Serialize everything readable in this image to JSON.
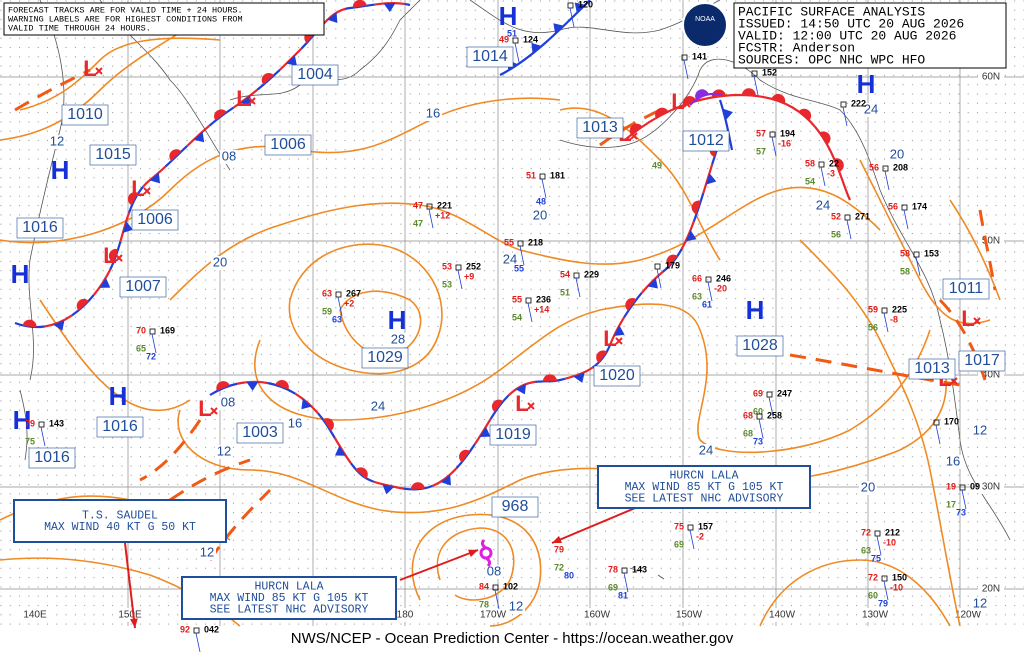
{
  "header": {
    "notes": [
      "FORECAST TRACKS ARE FOR VALID TIME + 24 HOURS.",
      "WARNING LABELS ARE FOR HIGHEST CONDITIONS FROM",
      "VALID TIME THROUGH 24 HOURS."
    ],
    "title": "PACIFIC SURFACE ANALYSIS",
    "issued": "ISSUED: 14:50 UTC 20 AUG 2026",
    "valid": "VALID:  12:00 UTC 20 AUG 2026",
    "forecaster": "FCSTR:  Anderson",
    "sources": "SOURCES: OPC NHC WPC HFO",
    "logo": "NOAA"
  },
  "footer": "NWS/NCEP - Ocean Prediction Center - https://ocean.weather.gov",
  "warnings": [
    {
      "lines": [
        "T.S. SAUDEL",
        "MAX WIND 40 KT G 50 KT"
      ]
    },
    {
      "lines": [
        "HURCN LALA",
        "MAX WIND 85 KT G 105 KT",
        "SEE LATEST NHC ADVISORY"
      ]
    },
    {
      "lines": [
        "HURCN LALA",
        "MAX WIND 85 KT G 105 KT",
        "SEE LATEST NHC ADVISORY"
      ]
    }
  ],
  "highs": [
    "H",
    "H",
    "H",
    "H",
    "H",
    "H",
    "H",
    "H"
  ],
  "lows": [
    "L",
    "L",
    "L",
    "L",
    "L",
    "L",
    "L",
    "L",
    "L",
    "L",
    "L"
  ],
  "pressure_labels": [
    "1004",
    "1010",
    "1015",
    "1016",
    "1006",
    "1006",
    "1007",
    "1029",
    "1028",
    "1020",
    "1019",
    "1003",
    "1016",
    "1016",
    "968",
    "1013",
    "1012",
    "1014",
    "1011",
    "1017",
    "1013"
  ],
  "isobar_labels": [
    "16",
    "12",
    "08",
    "20",
    "24",
    "20",
    "28",
    "24",
    "12",
    "24",
    "20",
    "24",
    "20",
    "24",
    "16",
    "12",
    "12",
    "08",
    "12",
    "12",
    "08",
    "16"
  ],
  "lat_labels": [
    "60N",
    "50N",
    "40N",
    "30N",
    "20N"
  ],
  "lon_labels": [
    "140E",
    "150E",
    "180",
    "170W",
    "160W",
    "150W",
    "140W",
    "130W",
    "120W"
  ],
  "stations": [
    {
      "pressure": "221",
      "temp": "47",
      "dew": "47",
      "tendency": "+12"
    },
    {
      "pressure": "252",
      "temp": "53",
      "dew": "53",
      "tendency": "+9"
    },
    {
      "pressure": "267",
      "temp": "63",
      "dew": "59",
      "wind": "63",
      "tendency": "+2"
    },
    {
      "pressure": "169",
      "temp": "70",
      "dew": "65",
      "wind": "72"
    },
    {
      "pressure": "143",
      "temp": "79",
      "dew": "75"
    },
    {
      "pressure": "218",
      "temp": "55",
      "wind": "55"
    },
    {
      "pressure": "236",
      "temp": "55",
      "dew": "54",
      "tendency": "+14"
    },
    {
      "pressure": "229",
      "temp": "54",
      "dew": "51"
    },
    {
      "pressure": "181",
      "temp": "51",
      "wind": "48"
    },
    {
      "pressure": "179"
    },
    {
      "pressure": "246",
      "temp": "66",
      "dew": "63",
      "wind": "61",
      "tendency": "-20"
    },
    {
      "pressure": "194",
      "temp": "57",
      "dew": "57",
      "tendency": "-16"
    },
    {
      "pressure": "222"
    },
    {
      "pressure": "22",
      "temp": "58",
      "dew": "54",
      "tendency": "-3"
    },
    {
      "pressure": "271",
      "temp": "52",
      "dew": "56"
    },
    {
      "pressure": "208",
      "temp": "56"
    },
    {
      "pressure": "174",
      "temp": "56"
    },
    {
      "pressure": "153",
      "temp": "58",
      "dew": "58"
    },
    {
      "pressure": "225",
      "temp": "59",
      "dew": "56",
      "tendency": "-8"
    },
    {
      "pressure": "247",
      "temp": "69",
      "dew": "60"
    },
    {
      "pressure": "258",
      "temp": "68",
      "dew": "68",
      "wind": "73"
    },
    {
      "pressure": "170"
    },
    {
      "pressure": "09",
      "temp": "19",
      "dew": "17",
      "wind": "73"
    },
    {
      "pressure": "212",
      "temp": "72",
      "dew": "63",
      "wind": "75",
      "tendency": "-10"
    },
    {
      "pressure": "150",
      "temp": "72",
      "dew": "60",
      "wind": "79",
      "tendency": "-10"
    },
    {
      "pressure": "157",
      "temp": "75",
      "dew": "69",
      "tendency": "-2"
    },
    {
      "pressure": "143",
      "temp": "78",
      "dew": "69",
      "wind": "81"
    },
    {
      "temp": "79",
      "dew": "72",
      "wind": "80"
    },
    {
      "pressure": "102",
      "temp": "84",
      "dew": "78"
    },
    {
      "pressure": "042",
      "temp": "92"
    },
    {
      "pressure": "124",
      "temp": "49"
    },
    {
      "pressure": "120"
    },
    {
      "pressure": "141"
    },
    {
      "pressure": "152"
    },
    {
      "dew": "49"
    },
    {
      "wind": "51"
    }
  ]
}
